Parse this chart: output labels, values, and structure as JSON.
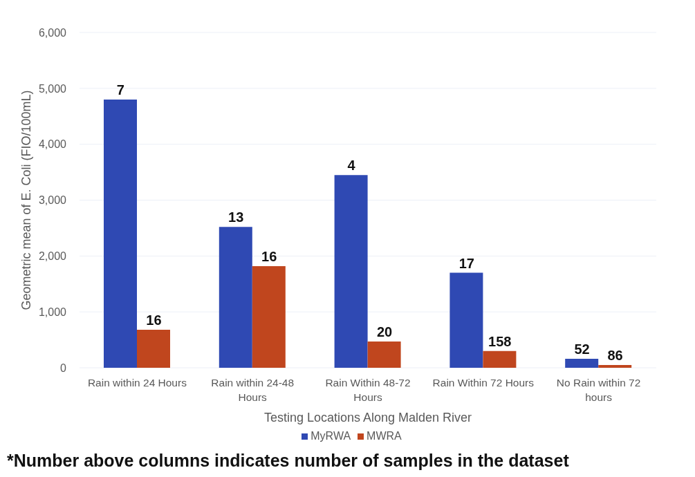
{
  "chart_data": {
    "type": "bar",
    "xlabel": "Testing Locations Along Malden River",
    "ylabel": "Geometric mean of E. Coli (FIO/100mL)",
    "categories": [
      "Rain within 24 Hours",
      "Rain within 24-48 Hours",
      "Rain Within 48-72 Hours",
      "Rain Within 72 Hours",
      "No Rain within 72 hours"
    ],
    "series": [
      {
        "name": "MyRWA",
        "color": "#2f49b3",
        "values": [
          4800,
          2520,
          3450,
          1700,
          160
        ]
      },
      {
        "name": "MWRA",
        "color": "#c0461e",
        "values": [
          680,
          1820,
          470,
          300,
          50
        ]
      }
    ],
    "ylim": [
      0,
      6000
    ],
    "yticks": [
      0,
      {
        "value": 1000,
        "label": "1,000"
      },
      {
        "value": 2000,
        "label": "2,000"
      },
      {
        "value": 3000,
        "label": "3,000"
      },
      {
        "value": 4000,
        "label": "4,000"
      },
      {
        "value": 5000,
        "label": "5,000"
      },
      {
        "value": 6000,
        "label": "6,000"
      }
    ],
    "grid": "y",
    "legend": "bottom",
    "annotations": [
      "*Number above columns indicates number of samples in the dataset",
      {
        "text": "7",
        "x": "Rain within 24 Hours",
        "y": 4800
      },
      {
        "text": "13",
        "x": "Rain within 24-48 Hours",
        "y": 2520
      },
      {
        "text": "4",
        "x": "Rain Within 48-72 Hours",
        "y": 3450
      },
      {
        "text": "17",
        "x": "Rain Within 72 Hours",
        "y": 1700
      },
      {
        "text": "52",
        "x": "No Rain within 72 hours",
        "y": 160
      },
      {
        "text": "16",
        "x": "Rain within 24 Hours",
        "y": 680
      },
      {
        "text": "16",
        "x": "Rain within 24-48 Hours",
        "y": 1820
      },
      {
        "text": "20",
        "x": "Rain Within 48-72 Hours",
        "y": 470
      },
      {
        "text": "158",
        "x": "Rain Within 72 Hours",
        "y": 300
      },
      {
        "text": "86",
        "x": "No Rain within 72 hours",
        "y": 50
      }
    ]
  }
}
